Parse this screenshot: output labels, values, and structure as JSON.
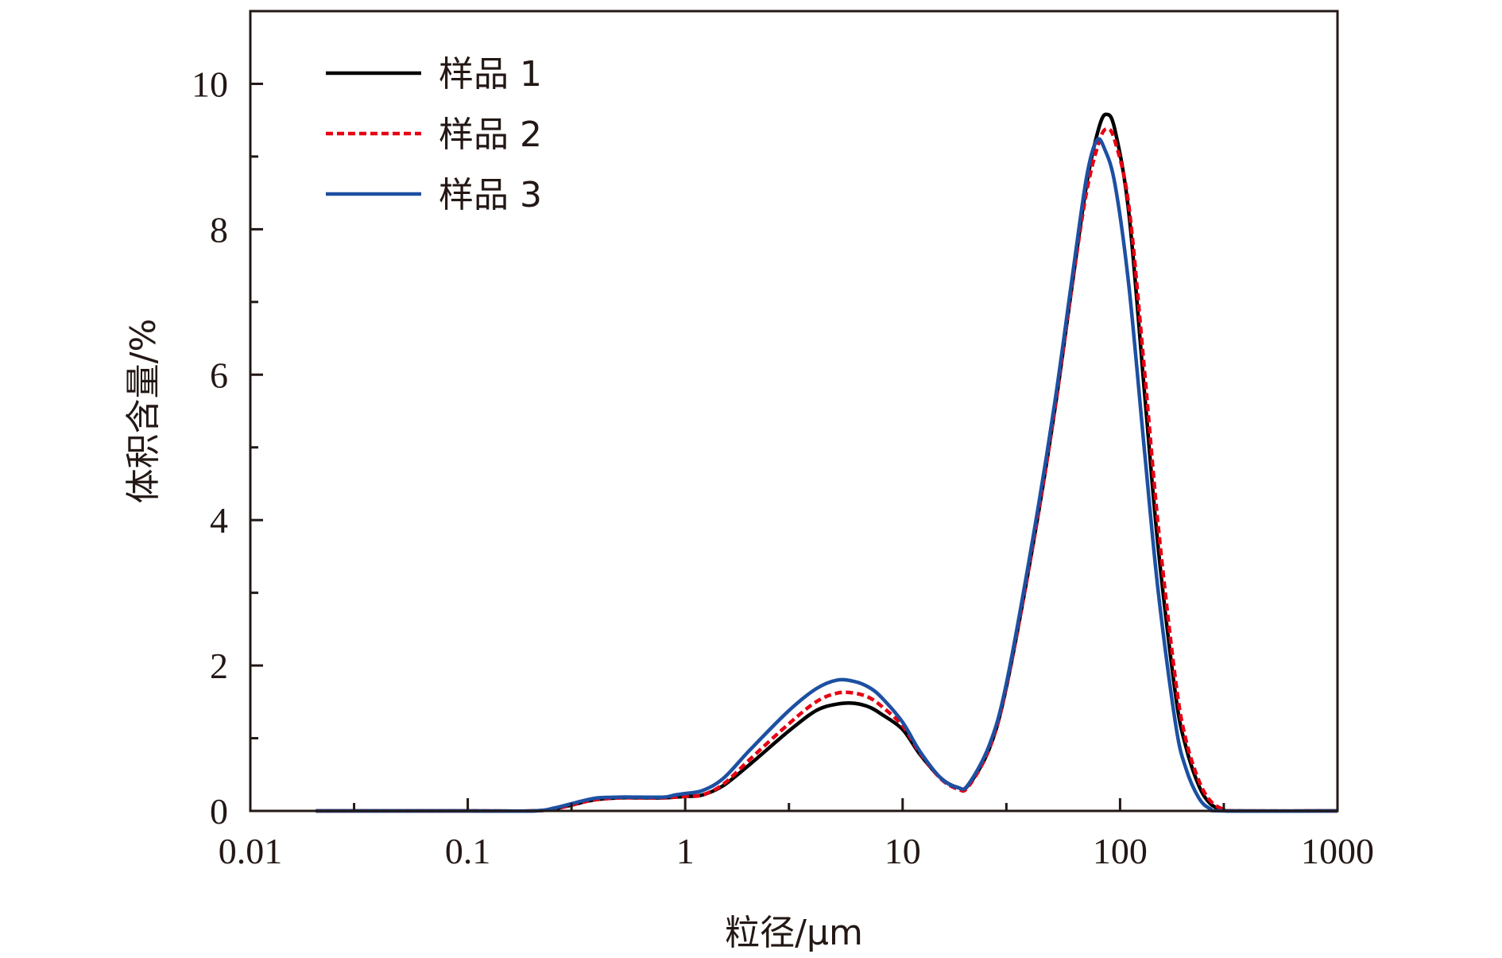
{
  "chart_data": {
    "type": "line",
    "xlabel": "粒径/μm",
    "ylabel": "体积含量/%",
    "x_scale": "log",
    "xlim": [
      0.01,
      1000
    ],
    "ylim": [
      0,
      11
    ],
    "x_ticks": [
      {
        "value": 0.01,
        "label": "0.01"
      },
      {
        "value": 0.1,
        "label": "0.1"
      },
      {
        "value": 1,
        "label": "1"
      },
      {
        "value": 10,
        "label": "10"
      },
      {
        "value": 100,
        "label": "100"
      },
      {
        "value": 1000,
        "label": "1000"
      }
    ],
    "y_ticks": [
      {
        "value": 0,
        "label": "0"
      },
      {
        "value": 2,
        "label": "2"
      },
      {
        "value": 4,
        "label": "4"
      },
      {
        "value": 6,
        "label": "6"
      },
      {
        "value": 8,
        "label": "8"
      },
      {
        "value": 10,
        "label": "10"
      }
    ],
    "legend_position": "top-left",
    "grid": false,
    "series": [
      {
        "name": "样品 1",
        "color": "#000000",
        "dash": "solid",
        "points": [
          [
            0.02,
            0
          ],
          [
            0.1,
            0
          ],
          [
            0.2,
            0
          ],
          [
            0.25,
            0.03
          ],
          [
            0.3,
            0.08
          ],
          [
            0.35,
            0.13
          ],
          [
            0.4,
            0.16
          ],
          [
            0.5,
            0.18
          ],
          [
            0.6,
            0.18
          ],
          [
            0.8,
            0.18
          ],
          [
            0.9,
            0.19
          ],
          [
            1,
            0.2
          ],
          [
            1.2,
            0.22
          ],
          [
            1.5,
            0.35
          ],
          [
            2,
            0.65
          ],
          [
            3,
            1.1
          ],
          [
            4,
            1.38
          ],
          [
            5,
            1.47
          ],
          [
            6,
            1.48
          ],
          [
            7,
            1.43
          ],
          [
            8,
            1.33
          ],
          [
            10,
            1.12
          ],
          [
            12,
            0.78
          ],
          [
            15,
            0.45
          ],
          [
            18,
            0.32
          ],
          [
            20,
            0.35
          ],
          [
            25,
            0.85
          ],
          [
            30,
            1.7
          ],
          [
            40,
            3.7
          ],
          [
            50,
            5.5
          ],
          [
            60,
            7.2
          ],
          [
            70,
            8.6
          ],
          [
            80,
            9.4
          ],
          [
            87,
            9.58
          ],
          [
            95,
            9.35
          ],
          [
            110,
            8.2
          ],
          [
            130,
            5.7
          ],
          [
            150,
            3.6
          ],
          [
            180,
            1.6
          ],
          [
            200,
            0.9
          ],
          [
            230,
            0.35
          ],
          [
            260,
            0.1
          ],
          [
            300,
            0.01
          ],
          [
            350,
            0
          ],
          [
            1000,
            0
          ]
        ]
      },
      {
        "name": "样品 2",
        "color": "#E60012",
        "dash": "dashed",
        "points": [
          [
            0.02,
            0
          ],
          [
            0.1,
            0
          ],
          [
            0.2,
            0
          ],
          [
            0.25,
            0.03
          ],
          [
            0.3,
            0.08
          ],
          [
            0.35,
            0.13
          ],
          [
            0.4,
            0.16
          ],
          [
            0.5,
            0.18
          ],
          [
            0.6,
            0.18
          ],
          [
            0.8,
            0.18
          ],
          [
            0.9,
            0.19
          ],
          [
            1,
            0.2
          ],
          [
            1.2,
            0.22
          ],
          [
            1.5,
            0.37
          ],
          [
            2,
            0.72
          ],
          [
            3,
            1.2
          ],
          [
            4,
            1.5
          ],
          [
            5,
            1.62
          ],
          [
            6,
            1.62
          ],
          [
            7,
            1.56
          ],
          [
            8,
            1.44
          ],
          [
            10,
            1.17
          ],
          [
            12,
            0.8
          ],
          [
            15,
            0.44
          ],
          [
            18,
            0.3
          ],
          [
            20,
            0.33
          ],
          [
            25,
            0.85
          ],
          [
            30,
            1.7
          ],
          [
            40,
            3.7
          ],
          [
            50,
            5.5
          ],
          [
            60,
            7.2
          ],
          [
            70,
            8.5
          ],
          [
            80,
            9.2
          ],
          [
            87,
            9.38
          ],
          [
            95,
            9.2
          ],
          [
            110,
            8.3
          ],
          [
            130,
            6.0
          ],
          [
            150,
            3.9
          ],
          [
            180,
            1.8
          ],
          [
            200,
            1.0
          ],
          [
            230,
            0.42
          ],
          [
            260,
            0.14
          ],
          [
            300,
            0.02
          ],
          [
            350,
            0
          ],
          [
            1000,
            0
          ]
        ]
      },
      {
        "name": "样品 3",
        "color": "#1D50A2",
        "dash": "solid",
        "points": [
          [
            0.02,
            0
          ],
          [
            0.1,
            0
          ],
          [
            0.2,
            0
          ],
          [
            0.25,
            0.04
          ],
          [
            0.3,
            0.1
          ],
          [
            0.35,
            0.15
          ],
          [
            0.4,
            0.18
          ],
          [
            0.5,
            0.19
          ],
          [
            0.6,
            0.19
          ],
          [
            0.8,
            0.19
          ],
          [
            0.9,
            0.22
          ],
          [
            1,
            0.24
          ],
          [
            1.2,
            0.28
          ],
          [
            1.5,
            0.45
          ],
          [
            2,
            0.85
          ],
          [
            3,
            1.38
          ],
          [
            4,
            1.68
          ],
          [
            5,
            1.8
          ],
          [
            6,
            1.78
          ],
          [
            7,
            1.7
          ],
          [
            8,
            1.56
          ],
          [
            10,
            1.22
          ],
          [
            12,
            0.82
          ],
          [
            15,
            0.45
          ],
          [
            18,
            0.32
          ],
          [
            20,
            0.36
          ],
          [
            25,
            0.9
          ],
          [
            30,
            1.75
          ],
          [
            40,
            3.8
          ],
          [
            50,
            5.6
          ],
          [
            60,
            7.3
          ],
          [
            70,
            8.7
          ],
          [
            78,
            9.22
          ],
          [
            85,
            9.1
          ],
          [
            95,
            8.6
          ],
          [
            110,
            7.2
          ],
          [
            130,
            4.9
          ],
          [
            150,
            3.0
          ],
          [
            180,
            1.2
          ],
          [
            200,
            0.6
          ],
          [
            230,
            0.18
          ],
          [
            260,
            0.03
          ],
          [
            300,
            0
          ],
          [
            1000,
            0
          ]
        ]
      }
    ]
  }
}
